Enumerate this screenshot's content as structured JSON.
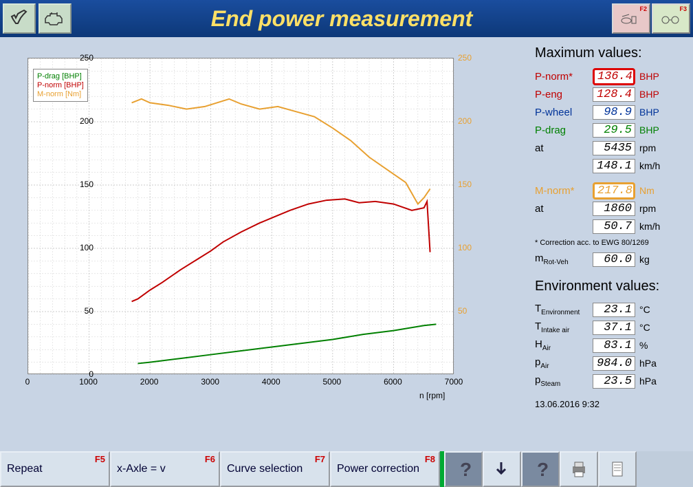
{
  "title": "End power measurement",
  "toolbar_right": [
    {
      "fkey": "F2",
      "bg": "#e8c8c8"
    },
    {
      "fkey": "F3",
      "bg": "#d8e8c8"
    }
  ],
  "chart": {
    "type": "line",
    "xlabel": "n [rpm]",
    "xlim": [
      0,
      7000
    ],
    "xtick_step": 1000,
    "y_left": {
      "lim": [
        0,
        250
      ],
      "tick_step": 50
    },
    "y_right": {
      "lim": [
        0,
        250
      ],
      "tick_step": 50,
      "color": "#e8a030"
    },
    "background": "#ffffff",
    "grid_color": "#bbbbbb",
    "grid_dash": "2,2",
    "minor_grid": true,
    "series": [
      {
        "name": "P-drag [BHP]",
        "color": "#008000",
        "width": 2,
        "x": [
          1800,
          2000,
          2500,
          3000,
          3500,
          4000,
          4500,
          5000,
          5500,
          6000,
          6500,
          6700
        ],
        "y": [
          9,
          10,
          13,
          16,
          19,
          22,
          25,
          28,
          32,
          35,
          39,
          40
        ]
      },
      {
        "name": "P-norm [BHP]",
        "color": "#c00000",
        "width": 2,
        "x": [
          1700,
          1800,
          2000,
          2200,
          2500,
          2800,
          3000,
          3200,
          3500,
          3800,
          4000,
          4300,
          4600,
          4900,
          5200,
          5435,
          5700,
          6000,
          6300,
          6500,
          6550,
          6600
        ],
        "y": [
          58,
          60,
          67,
          73,
          83,
          92,
          98,
          105,
          113,
          120,
          124,
          130,
          135,
          138,
          139,
          136,
          137,
          135,
          130,
          132,
          137,
          97
        ]
      },
      {
        "name": "M-norm [Nm]",
        "color": "#e8a030",
        "width": 2,
        "x": [
          1700,
          1860,
          2000,
          2300,
          2600,
          2900,
          3100,
          3300,
          3500,
          3800,
          4100,
          4400,
          4700,
          5000,
          5300,
          5600,
          5900,
          6200,
          6400,
          6500,
          6600
        ],
        "y": [
          215,
          218,
          215,
          213,
          210,
          212,
          215,
          218,
          214,
          210,
          212,
          208,
          204,
          195,
          185,
          172,
          162,
          152,
          135,
          140,
          147
        ]
      }
    ],
    "legend": {
      "position": "top-left"
    }
  },
  "max_values": {
    "title": "Maximum values:",
    "rows": [
      {
        "label": "P-norm*",
        "value": "136.4",
        "unit": "BHP",
        "color": "#c00000",
        "highlight": "red"
      },
      {
        "label": "P-eng",
        "value": "128.4",
        "unit": "BHP",
        "color": "#c00000"
      },
      {
        "label": "P-wheel",
        "value": "98.9",
        "unit": "BHP",
        "color": "#003399"
      },
      {
        "label": "P-drag",
        "value": "29.5",
        "unit": "BHP",
        "color": "#008000"
      },
      {
        "label": "at",
        "value": "5435",
        "unit": "rpm",
        "color": "#000000"
      },
      {
        "label": "",
        "value": "148.1",
        "unit": "km/h",
        "color": "#000000"
      }
    ],
    "torque": [
      {
        "label": "M-norm*",
        "value": "217.8",
        "unit": "Nm",
        "color": "#e8a030",
        "highlight": "orange"
      },
      {
        "label": "at",
        "value": "1860",
        "unit": "rpm",
        "color": "#000000"
      },
      {
        "label": "",
        "value": "50.7",
        "unit": "km/h",
        "color": "#000000"
      }
    ],
    "note": "* Correction acc. to EWG 80/1269",
    "mass": {
      "label": "m",
      "sub": "Rot-Veh",
      "value": "60.0",
      "unit": "kg"
    }
  },
  "env_values": {
    "title": "Environment values:",
    "rows": [
      {
        "label": "T",
        "sub": "Environment",
        "value": "23.1",
        "unit": "°C"
      },
      {
        "label": "T",
        "sub": "Intake air",
        "value": "37.1",
        "unit": "°C"
      },
      {
        "label": "H",
        "sub": "Air",
        "value": "83.1",
        "unit": "%"
      },
      {
        "label": "p",
        "sub": "Air",
        "value": "984.0",
        "unit": "hPa"
      },
      {
        "label": "p",
        "sub": "Steam",
        "value": "23.5",
        "unit": "hPa"
      }
    ]
  },
  "timestamp": "13.06.2016  9:32",
  "footer": {
    "buttons": [
      {
        "label": "Repeat",
        "fkey": "F5",
        "width": 160
      },
      {
        "label": "x-Axle = v",
        "fkey": "F6",
        "width": 160
      },
      {
        "label": "Curve\nselection",
        "fkey": "F7",
        "width": 160
      },
      {
        "label": "Power\ncorrection",
        "fkey": "F8",
        "width": 160
      }
    ],
    "icons": [
      "help",
      "arrow-down",
      "question2",
      "print",
      "page"
    ],
    "icon_bg": [
      "#7a8aa0",
      "#d8e2ec",
      "#7a8aa0",
      "#d8e2ec",
      "#d8e2ec"
    ]
  }
}
